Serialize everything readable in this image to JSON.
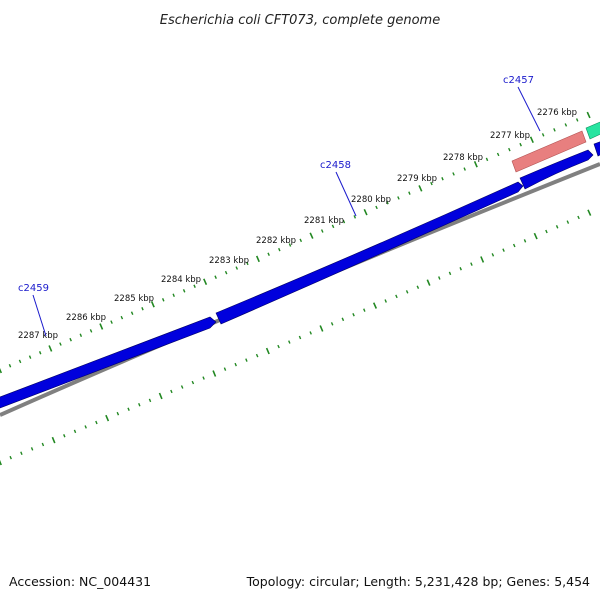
{
  "title": "Escherichia coli CFT073, complete genome",
  "accession_text": "Accession: NC_004431",
  "summary_text": "Topology: circular; Length: 5,231,428 bp; Genes: 5,454",
  "colors": {
    "forward_gene": "#0000dd",
    "rrna_gene": "#e87f7f",
    "trna_gene": "#27e4a0",
    "backbone": "#808080",
    "tick": "#228822",
    "gene_label": "#1a1acc"
  },
  "kbp_ticks": [
    {
      "kbp": 2276,
      "label": "2276 kbp"
    },
    {
      "kbp": 2277,
      "label": "2277 kbp"
    },
    {
      "kbp": 2278,
      "label": "2278 kbp"
    },
    {
      "kbp": 2279,
      "label": "2279 kbp"
    },
    {
      "kbp": 2280,
      "label": "2280 kbp"
    },
    {
      "kbp": 2281,
      "label": "2281 kbp"
    },
    {
      "kbp": 2282,
      "label": "2282 kbp"
    },
    {
      "kbp": 2283,
      "label": "2283 kbp"
    },
    {
      "kbp": 2284,
      "label": "2284 kbp"
    },
    {
      "kbp": 2285,
      "label": "2285 kbp"
    },
    {
      "kbp": 2286,
      "label": "2286 kbp"
    },
    {
      "kbp": 2287,
      "label": "2287 kbp"
    }
  ],
  "gene_labels": [
    "c2457",
    "c2458",
    "c2459"
  ]
}
